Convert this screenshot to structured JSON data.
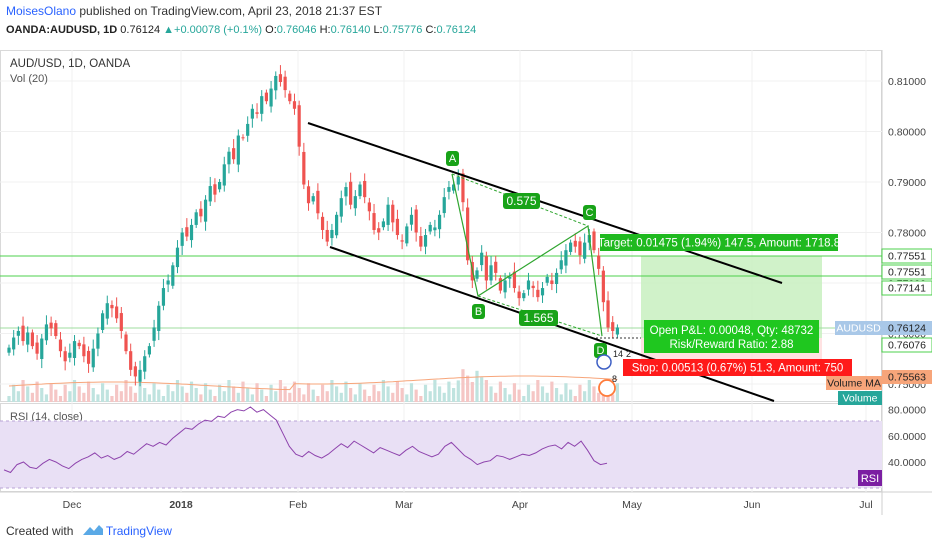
{
  "header": {
    "author": "MoisesOlano",
    "published": "published on TradingView.com, April 23, 2018 21:37 EST",
    "symbol_line": "OANDA:AUDUSD, 1D",
    "last": "0.76124",
    "change": "+0.00078 (+0.1%)",
    "o_label": "O:",
    "o": "0.76046",
    "h_label": "H:",
    "h": "0.76140",
    "l_label": "L:",
    "l": "0.75776",
    "c_label": "C:",
    "c": "0.76124"
  },
  "legend": {
    "symbol": "AUD/USD, 1D, OANDA",
    "vol": "Vol (20)",
    "rsi": "RSI (14, close)"
  },
  "colors": {
    "up": "#26a69a",
    "down": "#ef5350",
    "pattern": "#2fa52f",
    "channel": "#000000",
    "target_fill": "#c8f0c0",
    "stop_fill": "#ff1a1a",
    "rsi_line": "#8e44ad",
    "rsi_band": "#e9e0f5",
    "vol_ma": "#f7a57a"
  },
  "price_axis": {
    "ticks": [
      "0.81000",
      "0.80000",
      "0.79000",
      "0.78000",
      "0.77000",
      "0.76000",
      "0.75000"
    ],
    "tags": [
      {
        "text": "0.77551",
        "kind": "line"
      },
      {
        "text": "0.77551",
        "kind": "line"
      },
      {
        "text": "0.77141",
        "kind": "line"
      },
      {
        "text": "AUDUSD",
        "kind": "symbol"
      },
      {
        "text": "0.76124",
        "kind": "price"
      },
      {
        "text": "0.76076",
        "kind": "line"
      },
      {
        "text": "0.75563",
        "kind": "ma"
      },
      {
        "text": "Volume MA",
        "kind": "ma"
      },
      {
        "text": "Volume",
        "kind": "vol"
      }
    ]
  },
  "rsi_axis": {
    "ticks": [
      "80.0000",
      "60.0000",
      "40.0000"
    ],
    "tag": "RSI"
  },
  "time_axis": [
    "Dec",
    "2018",
    "Feb",
    "Mar",
    "Apr",
    "May",
    "Jun",
    "Jul"
  ],
  "pattern": {
    "points": [
      "A",
      "B",
      "C",
      "D"
    ],
    "ratio_ac": "0.575",
    "ratio_bd": "1.565"
  },
  "position": {
    "target": "Target: 0.01475 (1.94%) 147.5, Amount: 1718.8",
    "open_pl": "Open P&L: 0.00048, Qty: 48732",
    "rr": "Risk/Reward Ratio: 2.88",
    "stop": "Stop: 0.00513 (0.67%) 51.3, Amount: 750"
  },
  "events": {
    "e1": "14",
    "e2": "2",
    "e3": "8"
  },
  "footer": {
    "created": "Created with",
    "brand": "TradingView"
  },
  "chart_data": {
    "type": "candlestick",
    "symbol": "AUD/USD",
    "interval": "1D",
    "y_range": [
      0.749,
      0.816
    ],
    "price_ticks": [
      0.81,
      0.8,
      0.79,
      0.78,
      0.77,
      0.76,
      0.75
    ],
    "x_labels": [
      "Dec",
      "2018",
      "Feb",
      "Mar",
      "Apr",
      "May",
      "Jun",
      "Jul"
    ],
    "horizontal_levels": [
      0.77551,
      0.77141,
      0.76124,
      0.76076
    ],
    "close_path": [
      0.7572,
      0.7592,
      0.7605,
      0.7585,
      0.7602,
      0.7575,
      0.756,
      0.759,
      0.7618,
      0.761,
      0.7595,
      0.7565,
      0.7545,
      0.7562,
      0.7585,
      0.7575,
      0.7555,
      0.754,
      0.757,
      0.76,
      0.764,
      0.766,
      0.765,
      0.763,
      0.7605,
      0.7565,
      0.7528,
      0.7515,
      0.7528,
      0.7555,
      0.7575,
      0.7612,
      0.7655,
      0.769,
      0.7705,
      0.7735,
      0.777,
      0.78,
      0.7792,
      0.7815,
      0.784,
      0.7832,
      0.7865,
      0.7892,
      0.7875,
      0.79,
      0.7935,
      0.796,
      0.7945,
      0.7992,
      0.7988,
      0.8015,
      0.8045,
      0.8035,
      0.807,
      0.806,
      0.8085,
      0.811,
      0.8098,
      0.8082,
      0.806,
      0.8045,
      0.797,
      0.7895,
      0.7858,
      0.7872,
      0.7838,
      0.7805,
      0.7782,
      0.7805,
      0.7835,
      0.7868,
      0.789,
      0.7855,
      0.7872,
      0.7895,
      0.787,
      0.7842,
      0.7805,
      0.78,
      0.7822,
      0.7855,
      0.782,
      0.7795,
      0.7782,
      0.7812,
      0.7835,
      0.78,
      0.7772,
      0.7795,
      0.7815,
      0.781,
      0.7835,
      0.787,
      0.789,
      0.7895,
      0.791,
      0.786,
      0.7745,
      0.7705,
      0.7725,
      0.776,
      0.7705,
      0.7735,
      0.772,
      0.7685,
      0.7705,
      0.7712,
      0.769,
      0.767,
      0.768,
      0.7705,
      0.769,
      0.7672,
      0.769,
      0.7712,
      0.7698,
      0.772,
      0.7745,
      0.7765,
      0.778,
      0.7772,
      0.7755,
      0.778,
      0.7795,
      0.7765,
      0.7728,
      0.7662,
      0.7612,
      0.7605,
      0.7612
    ],
    "rsi": {
      "range": [
        30,
        90
      ],
      "ticks": [
        80,
        60,
        40
      ],
      "values": [
        34,
        32,
        38,
        40,
        36,
        35,
        39,
        42,
        40,
        37,
        35,
        39,
        42,
        44,
        47,
        43,
        45,
        42,
        44,
        48,
        46,
        50,
        54,
        52,
        55,
        53,
        58,
        62,
        66,
        65,
        69,
        72,
        71,
        75,
        74,
        78,
        80,
        79,
        82,
        78,
        80,
        76,
        72,
        62,
        52,
        46,
        44,
        48,
        45,
        43,
        46,
        50,
        54,
        51,
        56,
        53,
        50,
        47,
        51,
        49,
        47,
        45,
        49,
        52,
        48,
        46,
        44,
        46,
        52,
        55,
        50,
        45,
        42,
        38,
        40,
        41,
        45,
        44,
        42,
        44,
        46,
        45,
        47,
        50,
        52,
        53,
        50,
        55,
        52,
        56,
        49,
        41,
        38,
        39
      ]
    }
  }
}
